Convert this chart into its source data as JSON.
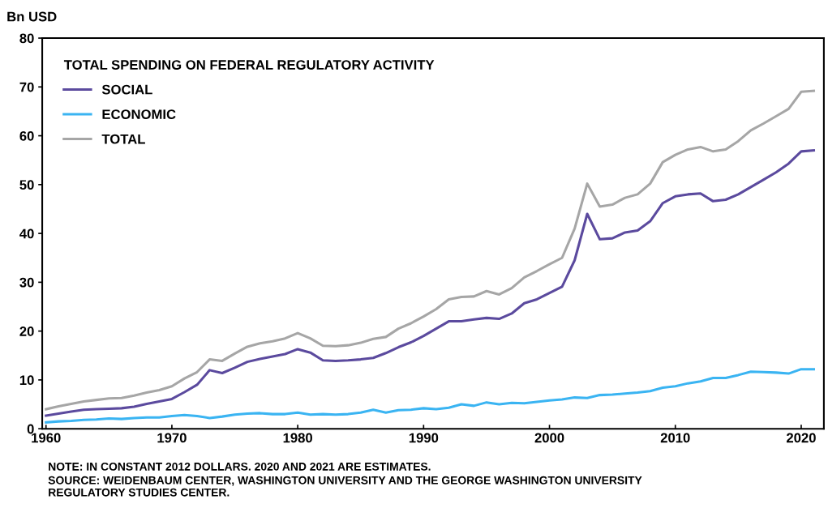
{
  "chart_data": {
    "type": "line",
    "ylabel": "Bn USD",
    "legend_title": "TOTAL SPENDING ON FEDERAL REGULATORY ACTIVITY",
    "x": [
      1960,
      1961,
      1962,
      1963,
      1964,
      1965,
      1966,
      1967,
      1968,
      1969,
      1970,
      1971,
      1972,
      1973,
      1974,
      1975,
      1976,
      1977,
      1978,
      1979,
      1980,
      1981,
      1982,
      1983,
      1984,
      1985,
      1986,
      1987,
      1988,
      1989,
      1990,
      1991,
      1992,
      1993,
      1994,
      1995,
      1996,
      1997,
      1998,
      1999,
      2000,
      2001,
      2002,
      2003,
      2004,
      2005,
      2006,
      2007,
      2008,
      2009,
      2010,
      2011,
      2012,
      2013,
      2014,
      2015,
      2016,
      2017,
      2018,
      2019,
      2020,
      2021
    ],
    "series": [
      {
        "name": "SOCIAL",
        "color": "#5b4a9e",
        "values": [
          2.7,
          3.1,
          3.5,
          3.9,
          4.0,
          4.1,
          4.2,
          4.5,
          5.1,
          5.6,
          6.1,
          7.5,
          9.0,
          12.0,
          11.4,
          12.5,
          13.7,
          14.3,
          14.8,
          15.3,
          16.3,
          15.6,
          14.0,
          13.9,
          14.0,
          14.2,
          14.5,
          15.5,
          16.7,
          17.7,
          19.0,
          20.5,
          22.0,
          22.0,
          22.4,
          22.7,
          22.5,
          23.6,
          25.7,
          26.5,
          27.8,
          29.1,
          34.5,
          44.0,
          38.8,
          39.0,
          40.2,
          40.6,
          42.5,
          46.2,
          47.6,
          48.0,
          48.2,
          46.6,
          46.9,
          48.0,
          49.5,
          51.0,
          52.5,
          54.3,
          56.8,
          57.0
        ]
      },
      {
        "name": "ECONOMIC",
        "color": "#3ab4f2",
        "values": [
          1.3,
          1.5,
          1.6,
          1.8,
          1.9,
          2.1,
          2.0,
          2.2,
          2.3,
          2.3,
          2.6,
          2.8,
          2.6,
          2.2,
          2.5,
          2.9,
          3.1,
          3.2,
          3.0,
          3.0,
          3.3,
          2.9,
          3.0,
          2.9,
          3.0,
          3.3,
          3.9,
          3.3,
          3.8,
          3.9,
          4.2,
          4.0,
          4.3,
          5.0,
          4.7,
          5.4,
          5.0,
          5.3,
          5.2,
          5.5,
          5.8,
          6.0,
          6.4,
          6.3,
          6.9,
          7.0,
          7.2,
          7.4,
          7.7,
          8.4,
          8.7,
          9.3,
          9.7,
          10.4,
          10.4,
          11.0,
          11.7,
          11.6,
          11.5,
          11.3,
          12.2,
          12.2
        ]
      },
      {
        "name": "TOTAL",
        "color": "#a6a6a6",
        "values": [
          4.0,
          4.6,
          5.1,
          5.6,
          5.9,
          6.2,
          6.3,
          6.8,
          7.4,
          7.9,
          8.7,
          10.3,
          11.6,
          14.2,
          13.9,
          15.4,
          16.8,
          17.5,
          17.9,
          18.5,
          19.6,
          18.5,
          17.0,
          16.9,
          17.1,
          17.6,
          18.4,
          18.8,
          20.5,
          21.6,
          23.0,
          24.5,
          26.5,
          27.0,
          27.1,
          28.2,
          27.5,
          28.8,
          31.0,
          32.3,
          33.7,
          35.0,
          41.0,
          50.2,
          45.5,
          45.9,
          47.3,
          48.0,
          50.2,
          54.6,
          56.1,
          57.2,
          57.7,
          56.8,
          57.2,
          58.9,
          61.1,
          62.5,
          64.0,
          65.5,
          69.0,
          69.2
        ]
      }
    ],
    "xlim": [
      1959.7,
      2021.8
    ],
    "xticks": [
      1960,
      1970,
      1980,
      1990,
      2000,
      2010,
      2020
    ],
    "ylim": [
      0,
      80
    ],
    "yticks": [
      0,
      10,
      20,
      30,
      40,
      50,
      60,
      70,
      80
    ],
    "grid": false,
    "legend": "top left",
    "marker": "none",
    "line_style": "solid",
    "annotations": [
      "NOTE: IN CONSTANT 2012 DOLLARS. 2020 AND 2021 ARE ESTIMATES.",
      "SOURCE: WEIDENBAUM CENTER, WASHINGTON UNIVERSITY AND THE GEORGE WASHINGTON UNIVERSITY\nREGULATORY STUDIES CENTER."
    ]
  }
}
